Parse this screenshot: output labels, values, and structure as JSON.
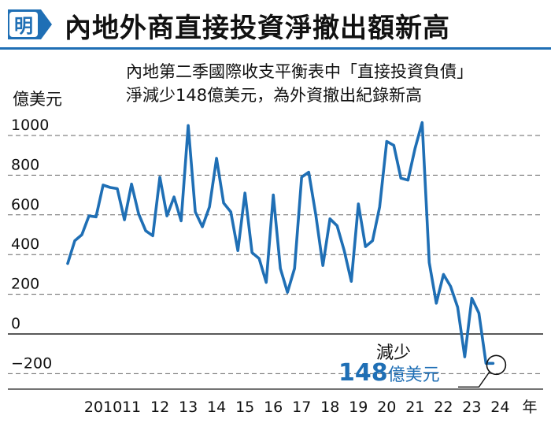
{
  "header": {
    "logo_text": "明",
    "title": "內地外商直接投資淨撤出額新高"
  },
  "chart_data": {
    "type": "line",
    "subtitle_lines": [
      "內地第二季國際收支平衡表中「直接投資負債」",
      "淨減少148億美元，為外資撤出紀錄新高"
    ],
    "ylabel": "億美元",
    "xlabel": "年",
    "ylim": [
      -300,
      1100
    ],
    "y_ticks": [
      1000,
      800,
      600,
      400,
      200,
      0,
      -200
    ],
    "y_tick_labels": [
      "1000",
      "800",
      "600",
      "400",
      "200",
      "0",
      "−200"
    ],
    "x_ticks": [
      2010,
      2011,
      2012,
      2013,
      2014,
      2015,
      2016,
      2017,
      2018,
      2019,
      2020,
      2021,
      2022,
      2023,
      2024
    ],
    "x_tick_labels": [
      "2010",
      "11",
      "12",
      "13",
      "14",
      "15",
      "16",
      "17",
      "18",
      "19",
      "20",
      "21",
      "22",
      "23",
      "24"
    ],
    "grid": true,
    "series": [
      {
        "color": "#1f6fb5",
        "x": [
          2009.25,
          2009.5,
          2009.75,
          2010.0,
          2010.25,
          2010.5,
          2010.75,
          2011.0,
          2011.25,
          2011.5,
          2011.75,
          2012.0,
          2012.25,
          2012.5,
          2012.75,
          2013.0,
          2013.25,
          2013.5,
          2013.75,
          2014.0,
          2014.25,
          2014.5,
          2014.75,
          2015.0,
          2015.25,
          2015.5,
          2015.75,
          2016.0,
          2016.25,
          2016.5,
          2016.75,
          2017.0,
          2017.25,
          2017.5,
          2017.75,
          2018.0,
          2018.25,
          2018.5,
          2018.75,
          2019.0,
          2019.25,
          2019.5,
          2019.75,
          2020.0,
          2020.25,
          2020.5,
          2020.75,
          2021.0,
          2021.25,
          2021.5,
          2021.75,
          2022.0,
          2022.25,
          2022.5,
          2022.75,
          2023.0,
          2023.25,
          2023.5,
          2023.75,
          2024.0,
          2024.25
        ],
        "values": [
          355,
          470,
          500,
          595,
          590,
          750,
          738,
          732,
          575,
          755,
          605,
          520,
          495,
          790,
          595,
          690,
          570,
          1050,
          615,
          540,
          640,
          885,
          660,
          615,
          420,
          710,
          410,
          380,
          260,
          700,
          330,
          210,
          330,
          790,
          815,
          600,
          345,
          580,
          545,
          420,
          265,
          655,
          440,
          470,
          640,
          970,
          950,
          785,
          775,
          935,
          1065,
          360,
          155,
          300,
          240,
          135,
          -115,
          180,
          105,
          -148,
          -148
        ]
      }
    ],
    "annotation": {
      "label": "減少",
      "value": "148",
      "unit": "億美元",
      "x": 2024.25,
      "y": -148
    }
  }
}
